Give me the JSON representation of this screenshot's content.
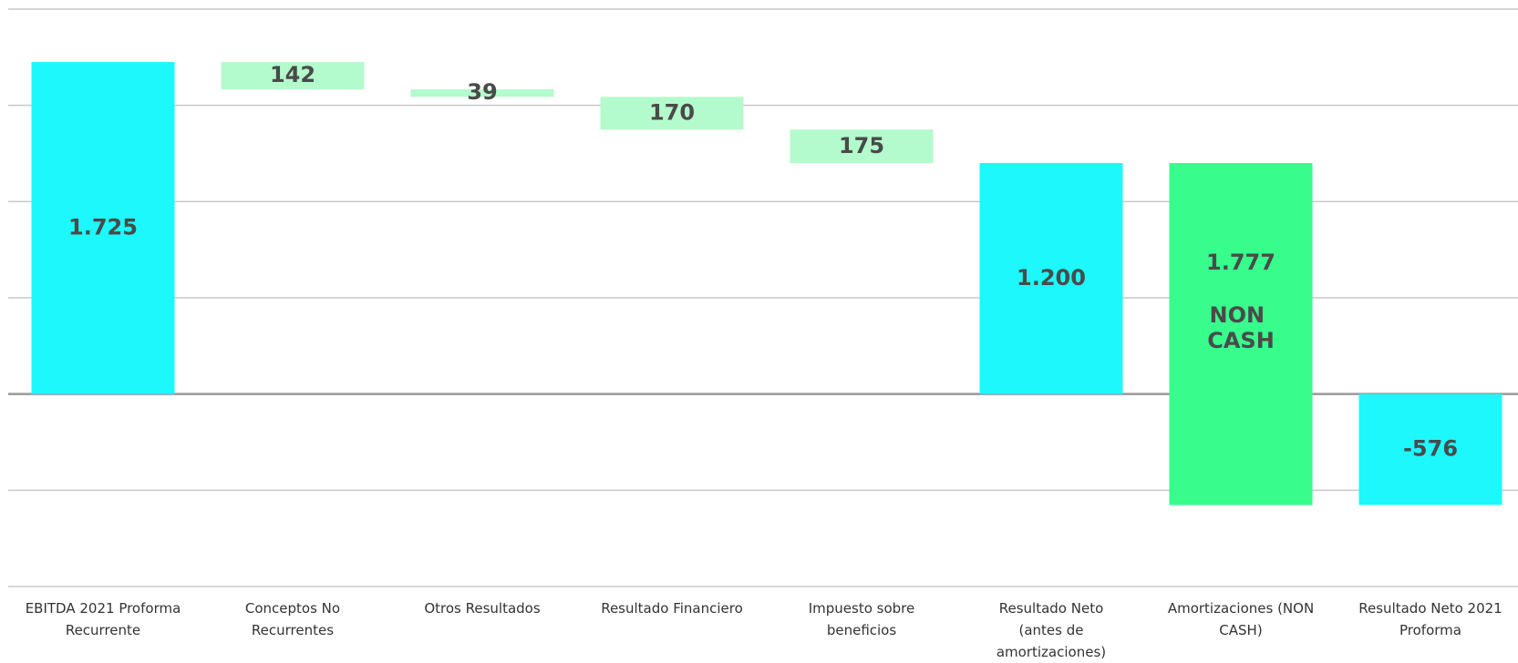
{
  "chart_data": {
    "type": "waterfall",
    "categories": [
      "EBITDA 2021 Proforma Recurrente",
      "Conceptos No Recurrentes",
      "Otros Resultados",
      "Resultado Financiero",
      "Impuesto sobre beneficios",
      "Resultado Neto (antes de amortizaciones)",
      "Amortizaciones (NON CASH)",
      "Resultado Neto 2021 Proforma"
    ],
    "values": [
      1725,
      142,
      39,
      170,
      175,
      1200,
      1777,
      -576
    ],
    "value_labels": [
      "1.725",
      "142",
      "39",
      "170",
      "175",
      "1.200",
      "1.777",
      "-576"
    ],
    "steps": [
      "total",
      "decrease",
      "decrease",
      "decrease",
      "decrease",
      "total",
      "decrease",
      "total"
    ],
    "colors": [
      "#1cf8fc",
      "#b3fbcc",
      "#b3fbcc",
      "#b3fbcc",
      "#b3fbcc",
      "#1cf8fc",
      "#38fc8c",
      "#1cf8fc"
    ],
    "bar_notes": [
      null,
      null,
      null,
      null,
      null,
      null,
      "NON CASH",
      null
    ],
    "ylim": [
      -1000,
      2000
    ],
    "yticks": [
      -1000,
      -500,
      0,
      500,
      1000,
      1500,
      2000
    ],
    "grid": true
  }
}
